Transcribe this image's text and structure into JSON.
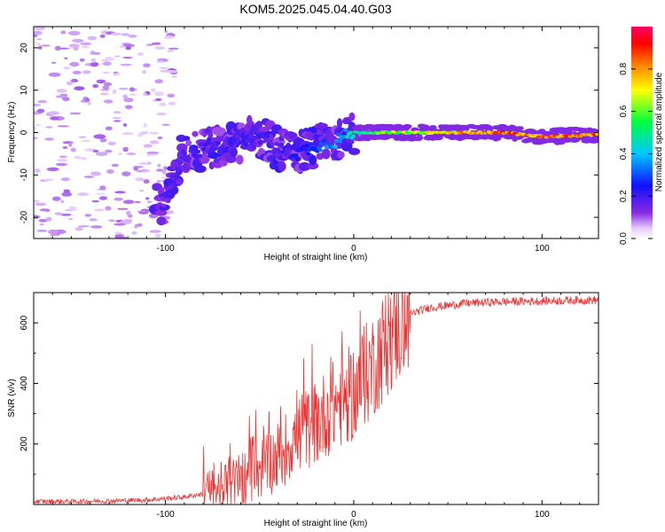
{
  "title": "KOM5.2025.045.04.40.G03",
  "chart_data": [
    {
      "type": "heatmap",
      "xlabel": "Height of straight line (km)",
      "ylabel": "Frequency (Hz)",
      "xlim": [
        -170,
        130
      ],
      "ylim": [
        -25,
        25
      ],
      "xticks": [
        -100,
        0,
        100
      ],
      "yticks": [
        -20,
        -10,
        0,
        10,
        20
      ],
      "colorbar": {
        "label": "Normalized spectral amplitude",
        "range": [
          0,
          1
        ],
        "ticks": [
          0.0,
          0.2,
          0.4,
          0.6,
          0.8
        ],
        "colormap": "rainbow (white-lavender → purple → blue → cyan → green → yellow → orange → red → magenta)"
      },
      "ridge": {
        "description": "frequency of peak spectral amplitude vs height",
        "x": [
          -100,
          -90,
          -80,
          -70,
          -60,
          -50,
          -40,
          -30,
          -20,
          -10,
          0,
          10,
          20,
          40,
          60,
          80,
          100,
          130
        ],
        "y": [
          -17,
          -5,
          -4,
          -3,
          -2,
          -1,
          -4,
          -5,
          -3,
          -2,
          0,
          0,
          0,
          0,
          0,
          0,
          -1,
          -0.5
        ],
        "amplitude": [
          0.15,
          0.2,
          0.2,
          0.2,
          0.2,
          0.2,
          0.2,
          0.25,
          0.3,
          0.4,
          0.5,
          0.6,
          0.7,
          0.75,
          0.85,
          0.9,
          0.95,
          0.9
        ]
      }
    },
    {
      "type": "line",
      "xlabel": "Height of straight line (km)",
      "ylabel": "SNR (v/v)",
      "xlim": [
        -170,
        130
      ],
      "ylim": [
        0,
        700
      ],
      "xticks": [
        -100,
        0,
        100
      ],
      "yticks": [
        200,
        400,
        600
      ],
      "color": "#ee3333",
      "series": [
        {
          "x": [
            -170,
            -150,
            -130,
            -110,
            -100,
            -90,
            -80,
            -70,
            -60,
            -50,
            -40,
            -30,
            -20,
            -10,
            0,
            10,
            20,
            30,
            40,
            60,
            80,
            100,
            120,
            130
          ],
          "values": [
            10,
            10,
            12,
            15,
            20,
            25,
            35,
            50,
            80,
            120,
            160,
            230,
            270,
            330,
            370,
            460,
            560,
            630,
            650,
            665,
            670,
            672,
            675,
            675
          ]
        }
      ]
    }
  ]
}
